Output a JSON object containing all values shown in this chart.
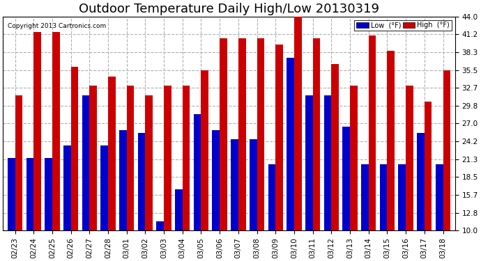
{
  "title": "Outdoor Temperature Daily High/Low 20130319",
  "copyright": "Copyright 2013 Cartronics.com",
  "legend_low": "Low  (°F)",
  "legend_high": "High  (°F)",
  "dates": [
    "02/23",
    "02/24",
    "02/25",
    "02/26",
    "02/27",
    "02/28",
    "03/01",
    "03/02",
    "03/03",
    "03/04",
    "03/05",
    "03/06",
    "03/07",
    "03/08",
    "03/09",
    "03/10",
    "03/11",
    "03/12",
    "03/13",
    "03/14",
    "03/15",
    "03/16",
    "03/17",
    "03/18"
  ],
  "lows": [
    21.5,
    21.5,
    21.5,
    23.5,
    31.5,
    23.5,
    26.0,
    25.5,
    11.5,
    16.5,
    28.5,
    26.0,
    24.5,
    24.5,
    20.5,
    37.5,
    31.5,
    31.5,
    26.5,
    20.5,
    20.5,
    20.5,
    25.5,
    20.5
  ],
  "highs": [
    31.5,
    41.5,
    41.5,
    36.0,
    33.0,
    34.5,
    33.0,
    31.5,
    33.0,
    33.0,
    35.5,
    40.5,
    40.5,
    40.5,
    39.5,
    44.0,
    40.5,
    36.5,
    33.0,
    41.0,
    38.5,
    33.0,
    30.5,
    35.5
  ],
  "low_color": "#0000cc",
  "high_color": "#cc0000",
  "bg_color": "#ffffff",
  "plot_bg_color": "#ffffff",
  "grid_color": "#b0b0b0",
  "ylim": [
    10.0,
    44.0
  ],
  "yticks": [
    10.0,
    12.8,
    15.7,
    18.5,
    21.3,
    24.2,
    27.0,
    29.8,
    32.7,
    35.5,
    38.3,
    41.2,
    44.0
  ],
  "title_fontsize": 13,
  "tick_fontsize": 7.5,
  "bar_width": 0.4
}
